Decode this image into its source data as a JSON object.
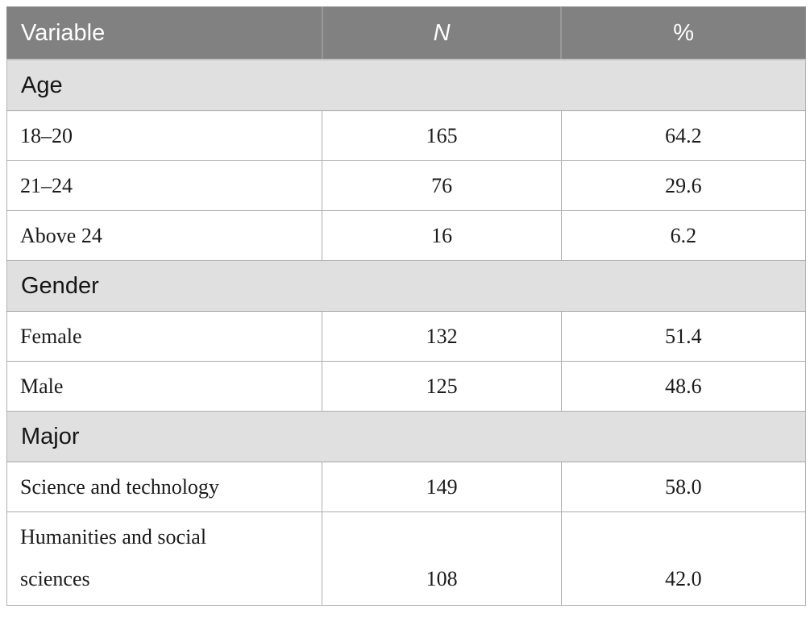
{
  "colors": {
    "header_bg": "#818181",
    "header_text": "#ffffff",
    "section_band_bg": "#e0e0e0",
    "row_bg": "#ffffff",
    "border": "#adadad",
    "body_text": "#1b1b1b"
  },
  "table": {
    "columns": [
      {
        "label": "Variable"
      },
      {
        "label": "N"
      },
      {
        "label": "%"
      }
    ],
    "sections": [
      {
        "label": "Age",
        "rows": [
          {
            "label": "18–20",
            "n": "165",
            "pct": "64.2"
          },
          {
            "label": "21–24",
            "n": "76",
            "pct": "29.6"
          },
          {
            "label": "Above 24",
            "n": "16",
            "pct": "6.2"
          }
        ]
      },
      {
        "label": "Gender",
        "rows": [
          {
            "label": "Female",
            "n": "132",
            "pct": "51.4"
          },
          {
            "label": "Male",
            "n": "125",
            "pct": "48.6"
          }
        ]
      },
      {
        "label": "Major",
        "rows": [
          {
            "label": "Science and technology",
            "n": "149",
            "pct": "58.0"
          },
          {
            "label": "Humanities and social sciences",
            "n": "108",
            "pct": "42.0",
            "two_line": true
          }
        ]
      }
    ]
  }
}
